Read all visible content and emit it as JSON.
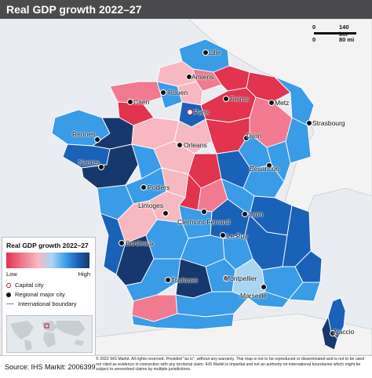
{
  "title": "Real GDP growth 2022–27",
  "scale_bar": {
    "km_zero": "0",
    "km_value": "140 km",
    "mi_zero": "0",
    "mi_value": "80 mi"
  },
  "legend": {
    "title": "Real GDP growth 2022–27",
    "low": "Low",
    "high": "High",
    "capital": "Capital city",
    "regional": "Regional major city",
    "boundary": "International boundary",
    "colors": [
      "#e2334f",
      "#f27a90",
      "#f7b8c2",
      "#a9d5f3",
      "#3a9be6",
      "#1a62b8",
      "#17386c"
    ]
  },
  "cities": {
    "lille": "Lille",
    "amiens": "Amiens",
    "rouen": "Rouen",
    "caen": "Caen",
    "paris": "Paris",
    "reims": "Reims",
    "metz": "Metz",
    "strasbourg": "Strasbourg",
    "rennes": "Rennes",
    "orleans": "Orleans",
    "dijon": "Dijon",
    "besancon": "Besancon",
    "nantes": "Nantes",
    "poitiers": "Poitiers",
    "limoges": "Limoges",
    "clermont": "Clermont-Ferrand",
    "lyon": "Lyon",
    "bordeaux": "Bordeaux",
    "lepuy": "Le Puy",
    "toulouse": "Toulouse",
    "montpellier": "Montpellier",
    "marseille": "Marseille",
    "ajaccio": "Ajaccio"
  },
  "footer": {
    "source": "Source: IHS Markit: 2006399",
    "copyright": "© 2022 IHS Markit. All rights reserved. Provided \"as is\", without any warranty. This map is not to be reproduced or disseminated and is not to be used nor cited as evidence in connection with any territorial claim. IHS Markit is impartial and not an authority on international boundaries which might be subject to unresolved claims by multiple jurisdictions."
  }
}
